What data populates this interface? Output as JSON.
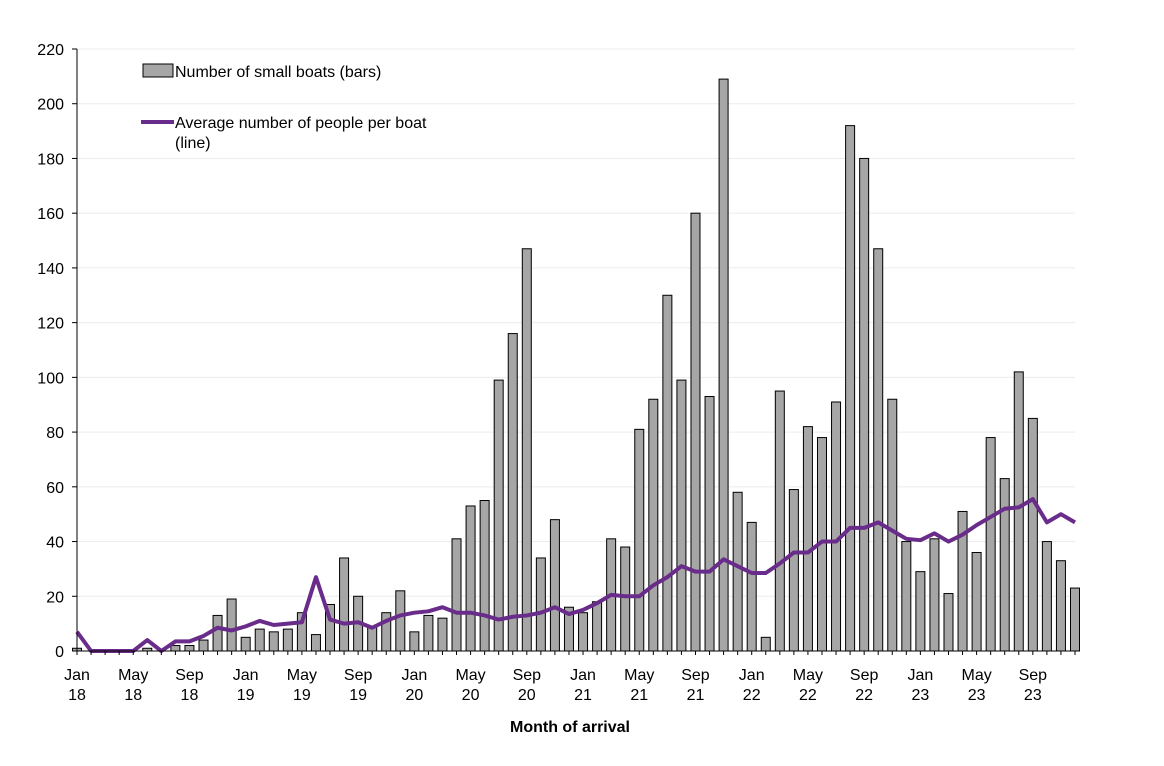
{
  "chart_data": {
    "type": "bar",
    "title": "",
    "xlabel": "Month of arrival",
    "ylabel": "",
    "ylim": [
      0,
      220
    ],
    "yticks": [
      0,
      20,
      40,
      60,
      80,
      100,
      120,
      140,
      160,
      180,
      200,
      220
    ],
    "grid": true,
    "legend_position": "top-left",
    "x_tick_labels": [
      {
        "index": 0,
        "month": "Jan",
        "year": "18"
      },
      {
        "index": 4,
        "month": "May",
        "year": "18"
      },
      {
        "index": 8,
        "month": "Sep",
        "year": "18"
      },
      {
        "index": 12,
        "month": "Jan",
        "year": "19"
      },
      {
        "index": 16,
        "month": "May",
        "year": "19"
      },
      {
        "index": 20,
        "month": "Sep",
        "year": "19"
      },
      {
        "index": 24,
        "month": "Jan",
        "year": "20"
      },
      {
        "index": 28,
        "month": "May",
        "year": "20"
      },
      {
        "index": 32,
        "month": "Sep",
        "year": "20"
      },
      {
        "index": 36,
        "month": "Jan",
        "year": "21"
      },
      {
        "index": 40,
        "month": "May",
        "year": "21"
      },
      {
        "index": 44,
        "month": "Sep",
        "year": "21"
      },
      {
        "index": 48,
        "month": "Jan",
        "year": "22"
      },
      {
        "index": 52,
        "month": "May",
        "year": "22"
      },
      {
        "index": 56,
        "month": "Sep",
        "year": "22"
      },
      {
        "index": 60,
        "month": "Jan",
        "year": "23"
      },
      {
        "index": 64,
        "month": "May",
        "year": "23"
      },
      {
        "index": 68,
        "month": "Sep",
        "year": "23"
      }
    ],
    "series": [
      {
        "name": "Number of small boats (bars)",
        "kind": "bar",
        "color": "#a6a6a6",
        "values": [
          1,
          0,
          0,
          0,
          0,
          1,
          0,
          2,
          2,
          4,
          13,
          19,
          5,
          8,
          7,
          8,
          14,
          6,
          17,
          34,
          20,
          9,
          14,
          22,
          7,
          13,
          12,
          41,
          53,
          55,
          99,
          116,
          147,
          34,
          48,
          16,
          14,
          18,
          41,
          38,
          81,
          92,
          130,
          99,
          160,
          93,
          209,
          58,
          47,
          5,
          95,
          59,
          82,
          78,
          91,
          192,
          180,
          147,
          92,
          40,
          29,
          41,
          21,
          51,
          36,
          78,
          63,
          102,
          85,
          40,
          33,
          23
        ]
      },
      {
        "name": "Average number of people per boat (line)",
        "kind": "line",
        "color": "#6a2c8a",
        "values": [
          7,
          0,
          0,
          0,
          0,
          4,
          0,
          3.5,
          3.5,
          5.5,
          8.5,
          7.5,
          9,
          11,
          9.5,
          10,
          10.5,
          27,
          11.5,
          10,
          10.5,
          8.5,
          11,
          13,
          14,
          14.5,
          16,
          14,
          14,
          13,
          11.5,
          12.5,
          13,
          14,
          16,
          13.5,
          15,
          17.5,
          20.5,
          20,
          20,
          24,
          27,
          31,
          29,
          29,
          33.5,
          31,
          28.5,
          28.5,
          32,
          36,
          36,
          40,
          40,
          45,
          45,
          47,
          44,
          41,
          40.5,
          43,
          40,
          42.5,
          46,
          49,
          52,
          52.5,
          55.5,
          47,
          50,
          47
        ]
      }
    ]
  }
}
